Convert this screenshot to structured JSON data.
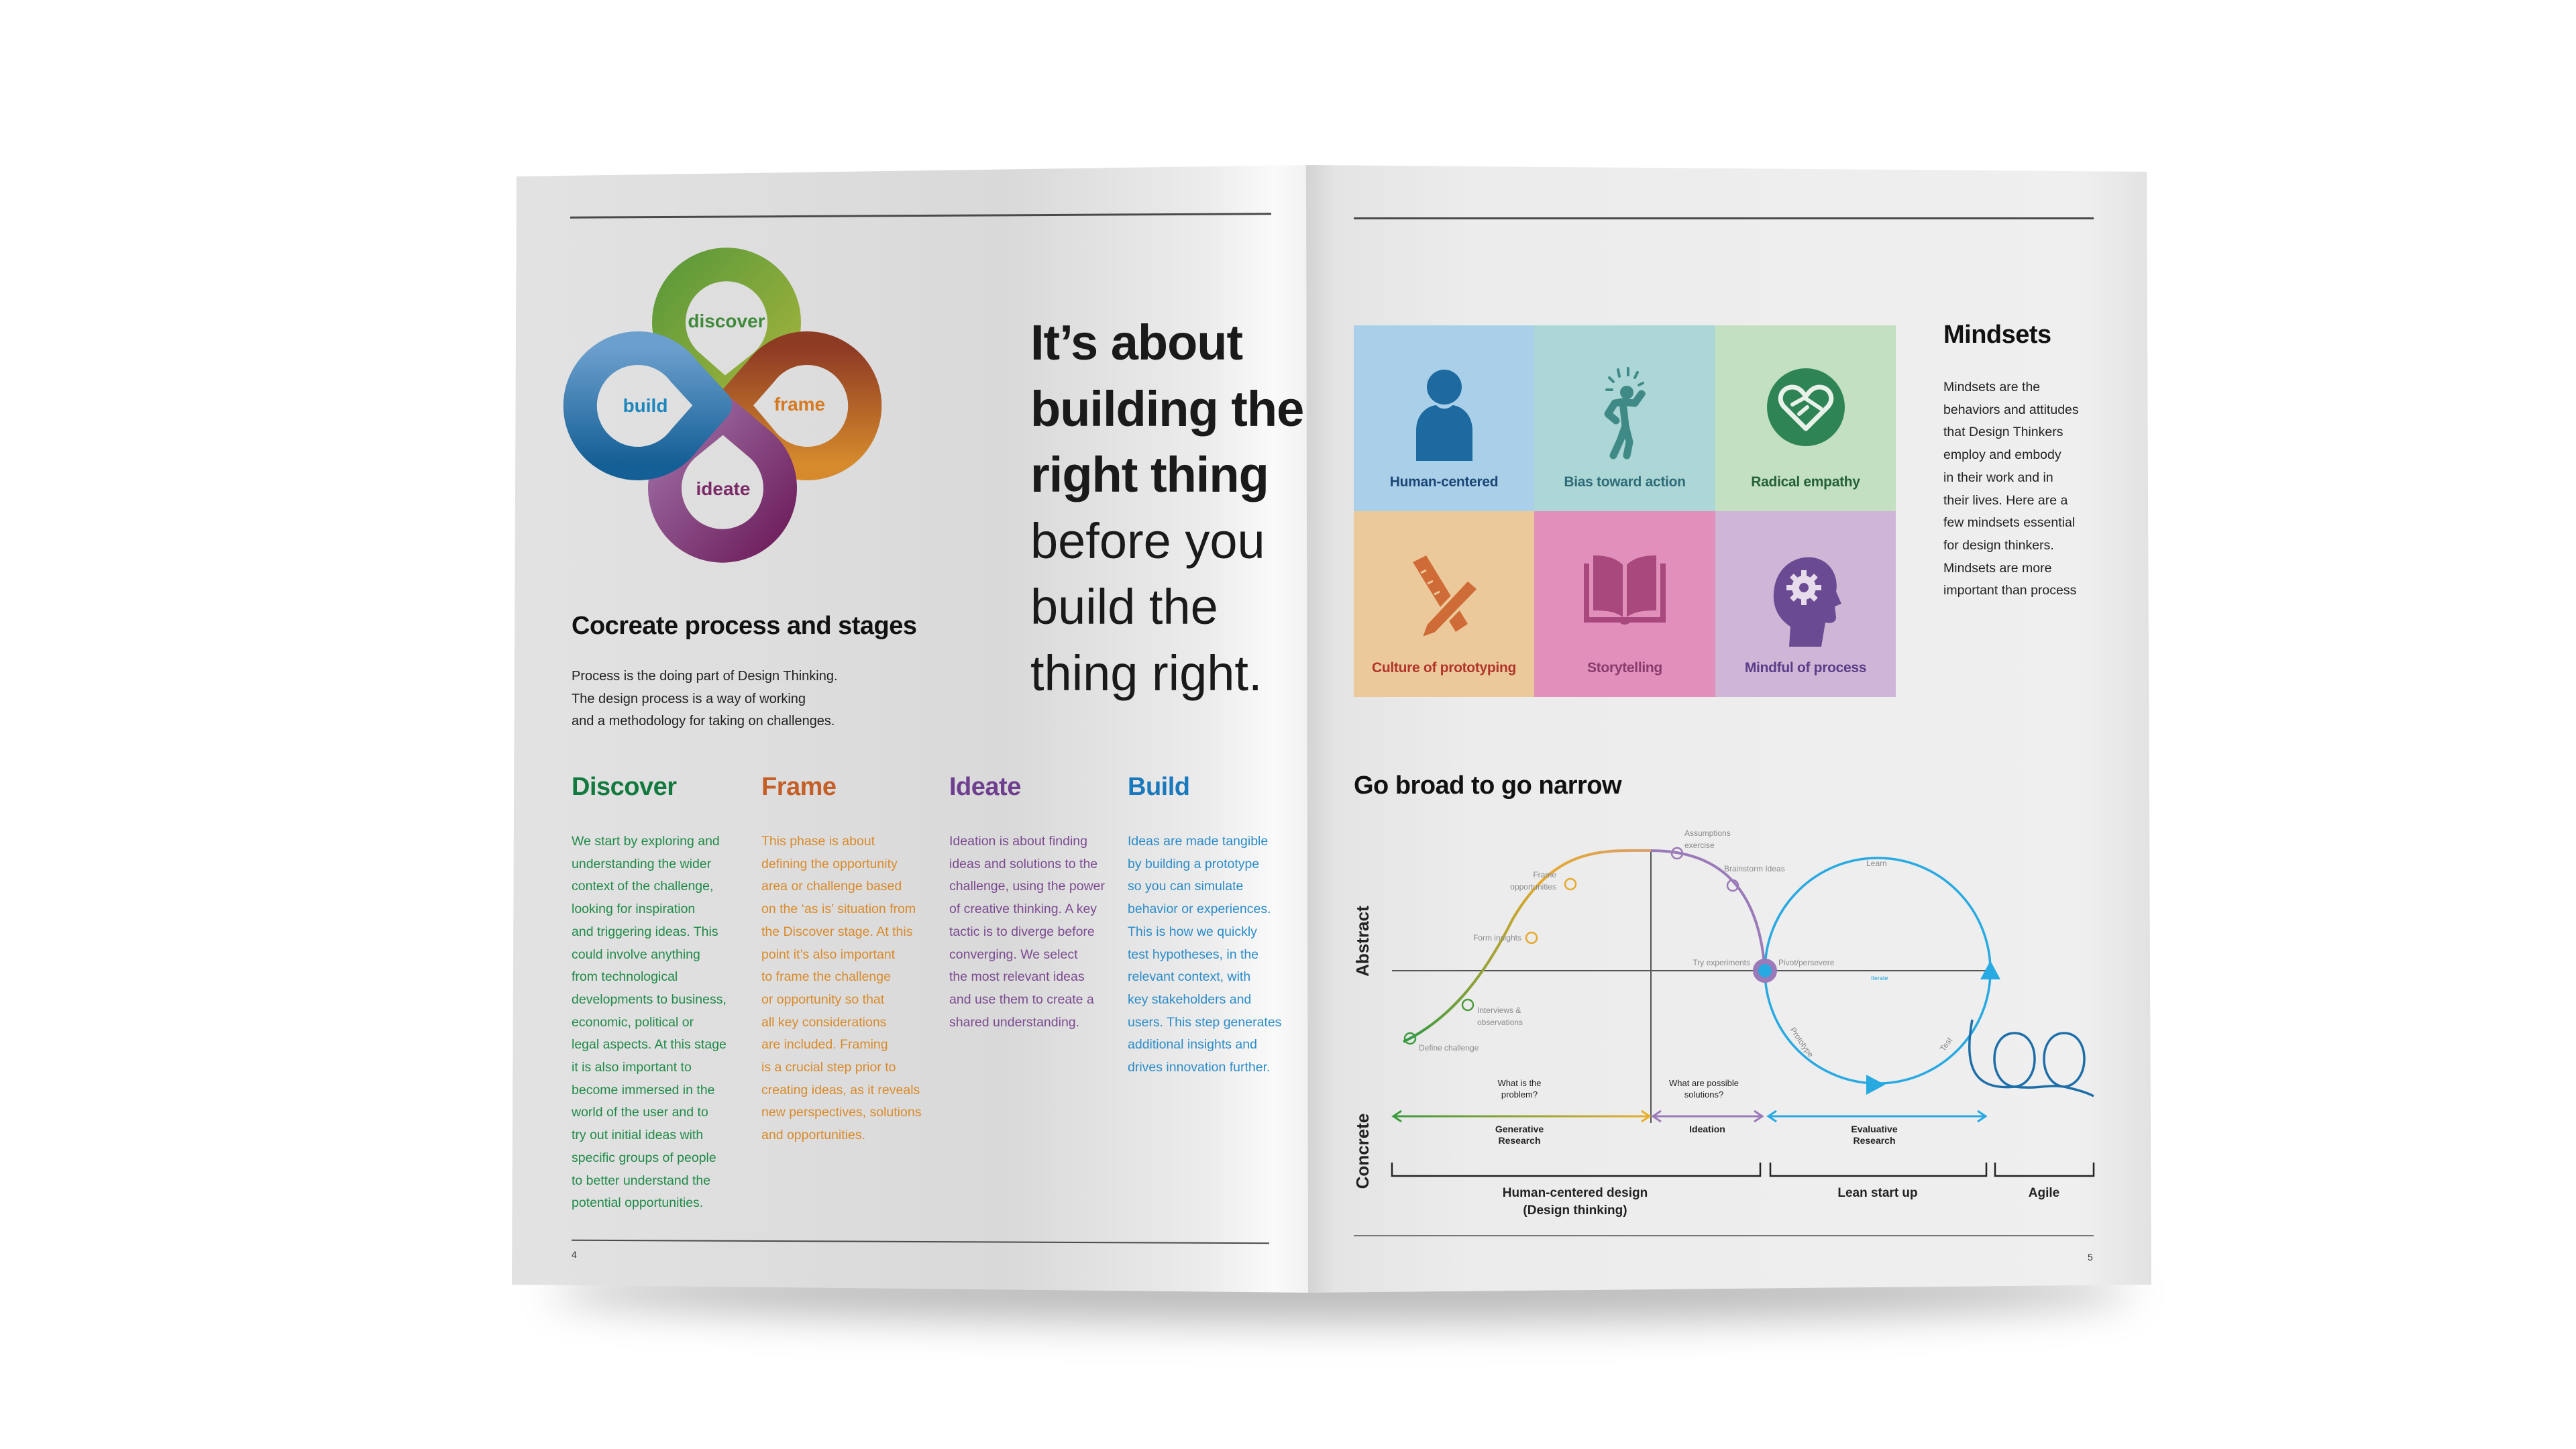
{
  "left_page": {
    "process_wheel": {
      "stages": [
        {
          "label": "discover",
          "color": "#3f8a3a"
        },
        {
          "label": "frame",
          "color": "#d47a23"
        },
        {
          "label": "ideate",
          "color": "#7a2a67"
        },
        {
          "label": "build",
          "color": "#1c86bd"
        }
      ]
    },
    "headline": {
      "bold_lines": [
        "It’s about",
        "building the",
        "right thing"
      ],
      "regular_lines": [
        "before you",
        "build the",
        "thing right."
      ]
    },
    "section_title": "Cocreate process and stages",
    "intro_lines": [
      "Process is the doing part of Design Thinking.",
      "The design process is a way of working",
      "and a methodology for taking on challenges."
    ],
    "stages": [
      {
        "title": "Discover",
        "color": "#127a3e",
        "text_color": "#1f8a48",
        "lines": [
          "We start by exploring and",
          "understanding the wider",
          "context of the challenge,",
          "looking for inspiration",
          "and triggering ideas. This",
          "could involve anything",
          "from technological",
          "developments to business,",
          "economic, political or",
          "legal aspects. At this stage",
          "it is also important to",
          "become immersed in the",
          "world of the user and to",
          "try out initial ideas with",
          "specific groups of people",
          "to better understand the",
          "potential opportunities."
        ]
      },
      {
        "title": "Frame",
        "color": "#c45f27",
        "text_color": "#d98a2a",
        "lines": [
          "This phase is about",
          "defining the opportunity",
          "area or challenge based",
          "on the ‘as is’ situation from",
          "the Discover stage. At this",
          "point it’s also important",
          "to frame the challenge",
          "or opportunity so that",
          "all key considerations",
          "are included. Framing",
          "is a crucial step prior to",
          "creating ideas, as it reveals",
          "new perspectives, solutions",
          "and opportunities."
        ]
      },
      {
        "title": "Ideate",
        "color": "#6f3f8f",
        "text_color": "#7b4a90",
        "lines": [
          "Ideation is about finding",
          "ideas and solutions to the",
          "challenge, using the power",
          "of creative thinking. A key",
          "tactic is to diverge before",
          "converging. We select",
          "the most relevant ideas",
          "and use them to create a",
          "shared understanding."
        ]
      },
      {
        "title": "Build",
        "color": "#1a78bd",
        "text_color": "#2b8cc9",
        "lines": [
          "Ideas are made tangible",
          "by building a prototype",
          "so you can simulate",
          "behavior or experiences.",
          "This is how we quickly",
          "test hypotheses, in the",
          "relevant context, with",
          "key stakeholders and",
          "users. This step generates",
          "additional insights and",
          "drives innovation further."
        ]
      }
    ],
    "page_number": "4"
  },
  "right_page": {
    "mindset_tiles": [
      {
        "label": "Human-centered",
        "icon": "person-icon",
        "bg": "#a9d0e8",
        "color": "#1b4676",
        "icon_color": "#1d6aa0"
      },
      {
        "label": "Bias toward action",
        "icon": "running-person-icon",
        "bg": "#acd7d6",
        "color": "#2f6c78",
        "icon_color": "#3f8a86"
      },
      {
        "label": "Radical empathy",
        "icon": "heart-handshake-icon",
        "bg": "#c3e0c2",
        "color": "#24603a",
        "icon_color": "#2f8455"
      },
      {
        "label": "Culture of prototyping",
        "icon": "pencil-ruler-icon",
        "bg": "#ebc99b",
        "color": "#b2352a",
        "icon_color": "#cf6b36"
      },
      {
        "label": "Storytelling",
        "icon": "open-book-icon",
        "bg": "#e190bc",
        "color": "#8a3a6c",
        "icon_color": "#a8487c"
      },
      {
        "label": "Mindful of process",
        "icon": "head-gear-icon",
        "bg": "#cfb5d6",
        "color": "#5a3d88",
        "icon_color": "#6a4a92"
      }
    ],
    "mindsets": {
      "title": "Mindsets",
      "lines": [
        "Mindsets are the",
        "behaviors and attitudes",
        "that Design Thinkers",
        "employ and embody",
        "in their work and in",
        "their lives. Here are a",
        "few mindsets essential",
        "for design thinkers.",
        "Mindsets are more",
        "important than process"
      ]
    },
    "diagram": {
      "title": "Go broad to go narrow",
      "axis_top": "Abstract",
      "axis_bottom": "Concrete",
      "steps": {
        "define": "Define challenge",
        "interviews": [
          "Interviews &",
          "observations"
        ],
        "insights": "Form insights",
        "frame": [
          "Frame",
          "opportunities"
        ],
        "assumptions": [
          "Assumptions",
          "exercise"
        ],
        "brainstorm": "Brainstorm Ideas",
        "try": "Try experiments",
        "pivot": "Pivot/persevere",
        "iterate": "Iterate",
        "learn": "Learn",
        "prototype": "Prototype",
        "test": "Test"
      },
      "questions": [
        [
          "What is the",
          "problem?"
        ],
        [
          "What are possible",
          "solutions?"
        ]
      ],
      "phases": [
        [
          "Generative",
          "Research"
        ],
        [
          "Ideation"
        ],
        [
          "Evaluative",
          "Research"
        ]
      ],
      "methods": [
        [
          "Human-centered design",
          "(Design thinking)"
        ],
        [
          "Lean start up"
        ],
        [
          "Agile"
        ]
      ],
      "colors": {
        "green": "#3a9a3f",
        "yellow": "#e8a92a",
        "purple": "#9a7ab8",
        "blue": "#27a9e1",
        "dark_blue": "#1d6ea8"
      }
    },
    "page_number": "5"
  }
}
